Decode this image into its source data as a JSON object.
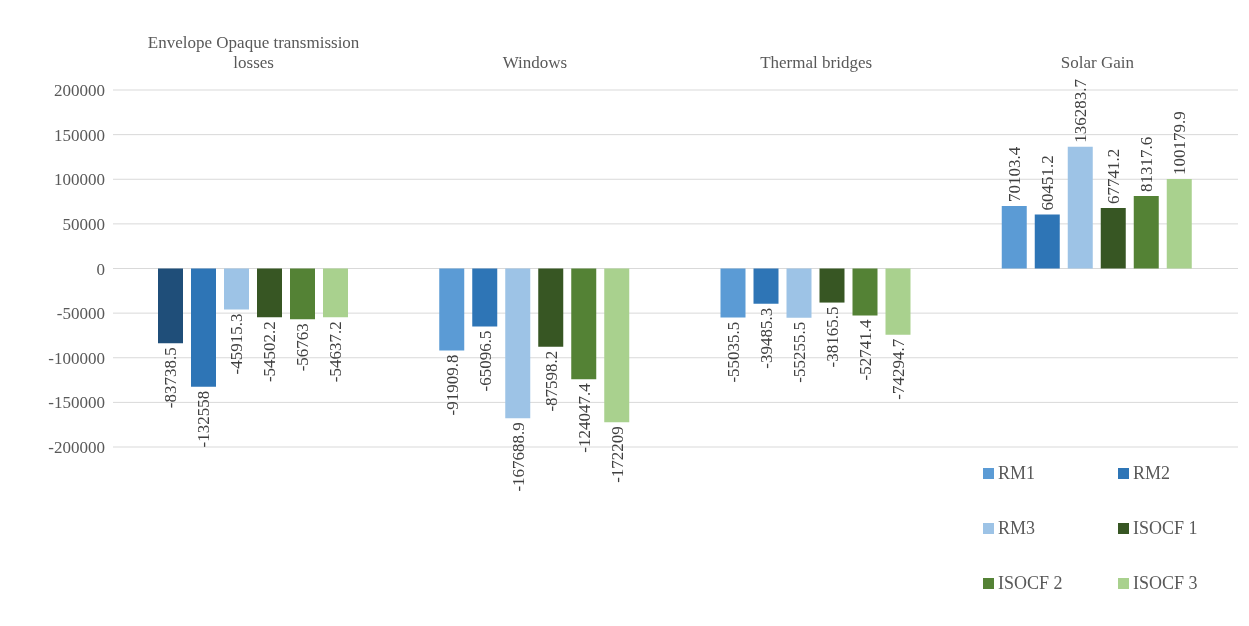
{
  "chart_data": {
    "type": "bar",
    "categories": [
      "Envelope Opaque transmission losses",
      "Windows",
      "Thermal bridges",
      "Solar Gain"
    ],
    "series": [
      {
        "name": "RM1",
        "color": "#5b9bd5",
        "colors": [
          "#1f4e79",
          "#5b9bd5",
          "#5b9bd5",
          "#5b9bd5"
        ],
        "values": [
          -83738.5,
          -91909.8,
          -55035.5,
          70103.4
        ]
      },
      {
        "name": "RM2",
        "color": "#2e75b6",
        "values": [
          -132558,
          -65096.5,
          -39485.3,
          60451.2
        ]
      },
      {
        "name": "RM3",
        "color": "#9dc3e6",
        "values": [
          -45915.3,
          -167688.9,
          -55255.5,
          136283.7
        ]
      },
      {
        "name": "ISOCF 1",
        "color": "#375623",
        "values": [
          -54502.2,
          -87598.2,
          -38165.5,
          67741.2
        ]
      },
      {
        "name": "ISOCF 2",
        "color": "#548235",
        "values": [
          -56763,
          -124047.4,
          -52741.4,
          81317.6
        ]
      },
      {
        "name": "ISOCF 3",
        "color": "#a9d18e",
        "values": [
          -54637.2,
          -172209,
          -74294.7,
          100179.9
        ]
      }
    ],
    "ylim": [
      -200000,
      200000
    ],
    "yticks": [
      -200000,
      -150000,
      -100000,
      -50000,
      0,
      50000,
      100000,
      150000,
      200000
    ],
    "grid": "y",
    "legend": "bottom right",
    "data_labels": true
  }
}
